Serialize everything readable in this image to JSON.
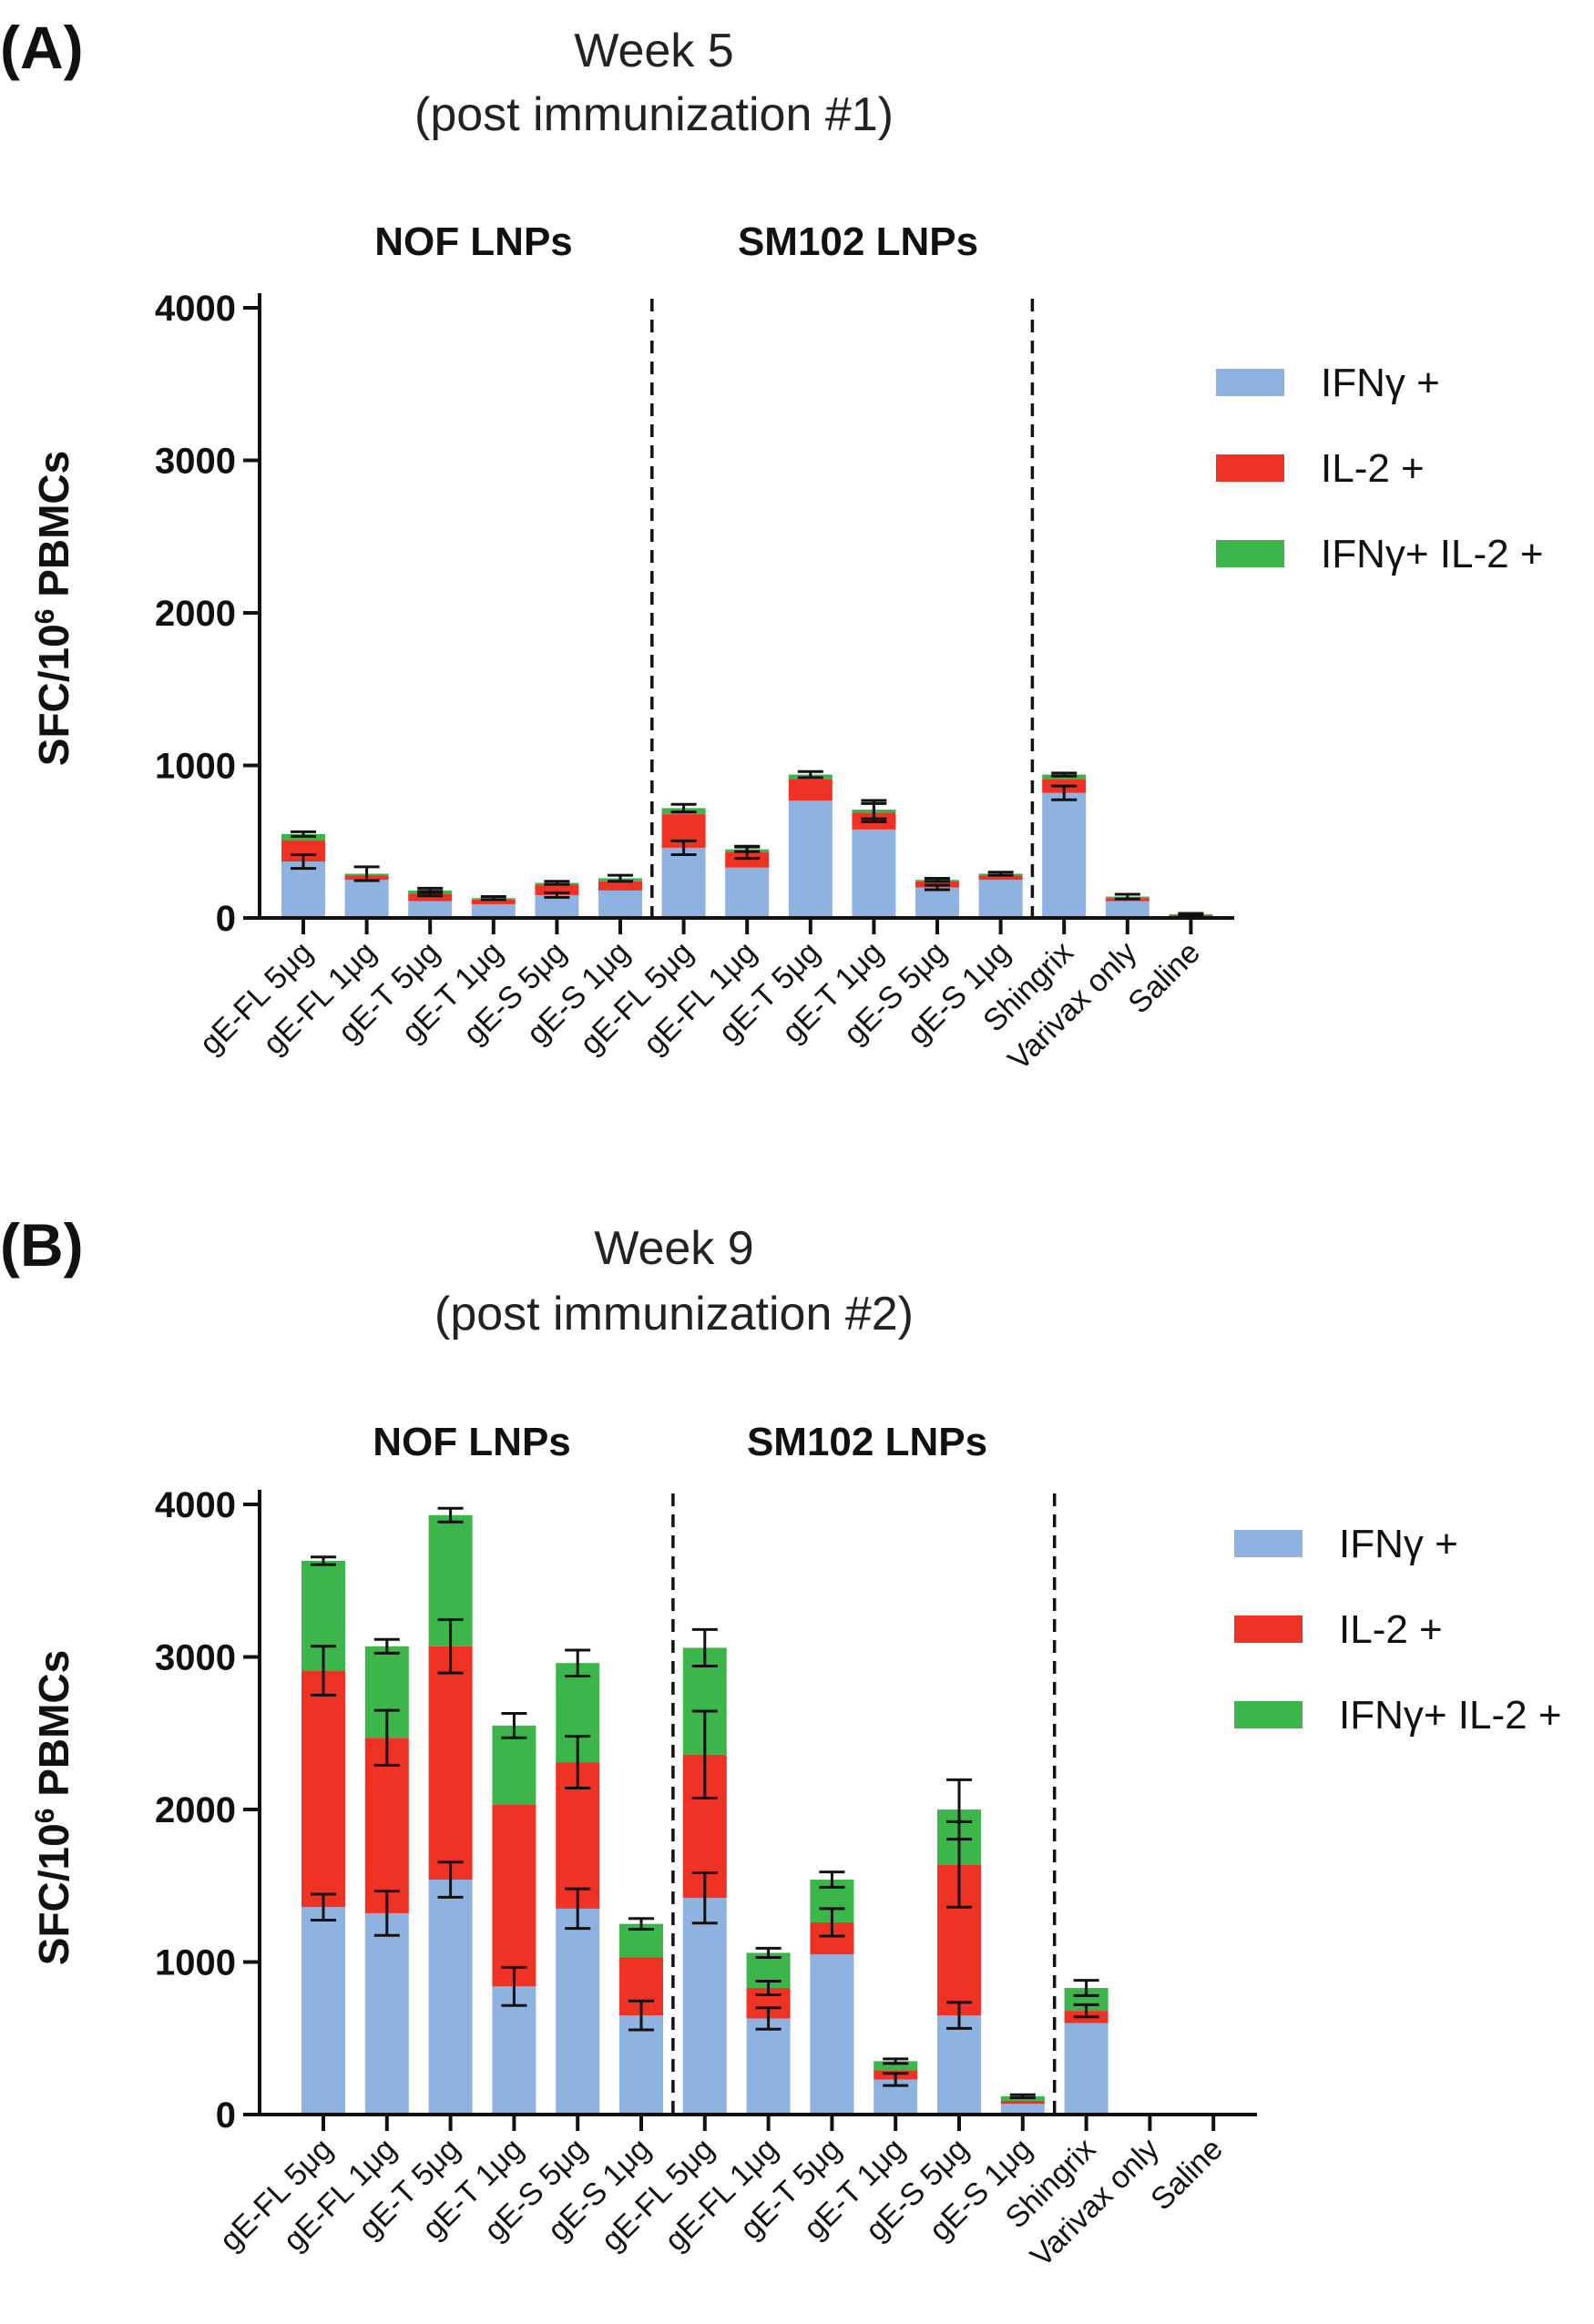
{
  "colors": {
    "ifng": "#8eb3e0",
    "il2": "#ee3224",
    "both": "#3cb54a",
    "axis": "#111111"
  },
  "chart_data": [
    {
      "type": "bar",
      "stacked": true,
      "panel_label": "(A)",
      "title_line1": "Week 5",
      "title_line2": "(post immunization #1)",
      "group_labels": [
        "NOF LNPs",
        "SM102 LNPs"
      ],
      "ylabel": "SFC/10",
      "ylabel_superscript": "6",
      "ylabel_suffix": " PBMCs",
      "ylim": [
        0,
        4000
      ],
      "yticks": [
        "0",
        "1000",
        "2000",
        "3000",
        "4000"
      ],
      "categories": [
        "gE-FL 5μg",
        "gE-FL 1μg",
        "gE-T 5μg",
        "gE-T 1μg",
        "gE-S 5μg",
        "gE-S 1μg",
        "gE-FL 5μg",
        "gE-FL 1μg",
        "gE-T 5μg",
        "gE-T 1μg",
        "gE-S 5μg",
        "gE-S 1μg",
        "Shingrix",
        "Varivax only",
        "Saline"
      ],
      "separators_after": [
        5,
        11
      ],
      "legend": [
        "IFNγ +",
        "IL-2 +",
        "IFNγ+ IL-2 +"
      ],
      "series": [
        {
          "name": "IFNγ +",
          "values": [
            370,
            250,
            110,
            90,
            150,
            180,
            460,
            330,
            770,
            580,
            200,
            250,
            820,
            110,
            10
          ]
        },
        {
          "name": "IL-2 +",
          "values": [
            140,
            30,
            50,
            30,
            70,
            60,
            220,
            100,
            140,
            110,
            40,
            30,
            90,
            20,
            10
          ]
        },
        {
          "name": "IFNγ+ IL-2 +",
          "values": [
            40,
            10,
            20,
            10,
            10,
            20,
            40,
            20,
            30,
            20,
            10,
            10,
            30,
            10,
            5
          ]
        }
      ],
      "errors": [
        {
          "series": 0,
          "values": [
            90,
            0,
            0,
            0,
            30,
            0,
            90,
            0,
            0,
            0,
            30,
            0,
            90,
            0,
            0
          ]
        },
        {
          "series": 1,
          "values": [
            0,
            0,
            30,
            0,
            0,
            0,
            0,
            80,
            0,
            120,
            0,
            0,
            0,
            0,
            0
          ]
        },
        {
          "series": 2,
          "values": [
            30,
            90,
            30,
            20,
            20,
            40,
            50,
            30,
            40,
            120,
            20,
            20,
            20,
            30,
            10
          ]
        }
      ]
    },
    {
      "type": "bar",
      "stacked": true,
      "panel_label": "(B)",
      "title_line1": "Week 9",
      "title_line2": "(post immunization #2)",
      "group_labels": [
        "NOF LNPs",
        "SM102 LNPs"
      ],
      "ylabel": "SFC/10",
      "ylabel_superscript": "6",
      "ylabel_suffix": " PBMCs",
      "ylim": [
        0,
        4000
      ],
      "yticks": [
        "0",
        "1000",
        "2000",
        "3000",
        "4000"
      ],
      "categories": [
        "gE-FL 5μg",
        "gE-FL 1μg",
        "gE-T 5μg",
        "gE-T 1μg",
        "gE-S 5μg",
        "gE-S 1μg",
        "gE-FL 5μg",
        "gE-FL 1μg",
        "gE-T 5μg",
        "gE-T 1μg",
        "gE-S 5μg",
        "gE-S 1μg",
        "Shingrix",
        "Varivax only",
        "Saline"
      ],
      "separators_after": [
        5,
        11
      ],
      "legend": [
        "IFNγ +",
        "IL-2 +",
        "IFNγ+ IL-2 +"
      ],
      "series": [
        {
          "name": "IFNγ +",
          "values": [
            1360,
            1320,
            1540,
            840,
            1350,
            650,
            1420,
            630,
            1050,
            230,
            650,
            70,
            600,
            5,
            5
          ]
        },
        {
          "name": "IL-2 +",
          "values": [
            1550,
            1150,
            1530,
            1190,
            960,
            380,
            940,
            200,
            210,
            60,
            990,
            20,
            80,
            0,
            0
          ]
        },
        {
          "name": "IFNγ+ IL-2 +",
          "values": [
            720,
            600,
            860,
            520,
            650,
            220,
            700,
            230,
            280,
            60,
            360,
            30,
            150,
            0,
            0
          ]
        }
      ],
      "errors": [
        {
          "series": 0,
          "values": [
            170,
            290,
            230,
            250,
            260,
            190,
            330,
            140,
            0,
            80,
            170,
            0,
            0,
            0,
            0
          ]
        },
        {
          "series": 1,
          "values": [
            320,
            360,
            350,
            0,
            340,
            0,
            570,
            90,
            180,
            0,
            560,
            0,
            80,
            0,
            0
          ]
        },
        {
          "series": 2,
          "values": [
            50,
            90,
            90,
            160,
            170,
            70,
            240,
            60,
            100,
            30,
            390,
            20,
            100,
            0,
            0
          ]
        }
      ]
    }
  ]
}
